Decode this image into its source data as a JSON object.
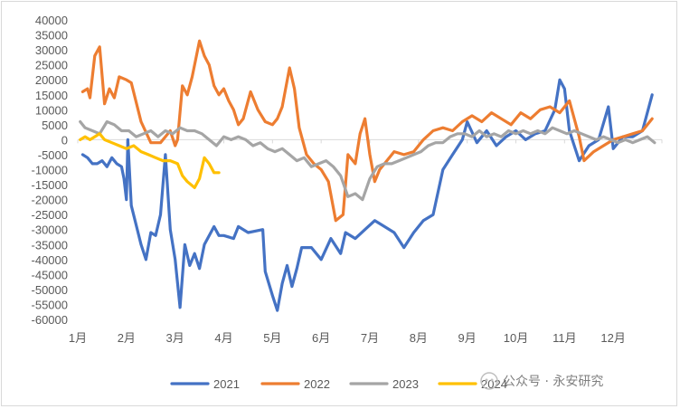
{
  "chart_data": {
    "type": "line",
    "title": "",
    "xlabel": "",
    "ylabel": "",
    "ylim": [
      -60000,
      40000
    ],
    "y_ticks": [
      40000,
      35000,
      30000,
      25000,
      20000,
      15000,
      10000,
      5000,
      0,
      -5000,
      -10000,
      -15000,
      -20000,
      -25000,
      -30000,
      -35000,
      -40000,
      -45000,
      -50000,
      -55000,
      -60000
    ],
    "y_tick_labels": [
      "40000",
      "35000",
      "30000",
      "25000",
      "20000",
      "15000",
      "10000",
      "5000",
      "0",
      "-5000",
      "-10000",
      "-15000",
      "-20000",
      "-25000",
      "-30000",
      "-35000",
      "-40000",
      "-45000",
      "-50000",
      "-55000",
      "-60000"
    ],
    "x_domain": [
      1,
      13
    ],
    "x_ticks": [
      1,
      2,
      3,
      4,
      5,
      6,
      7,
      8,
      9,
      10,
      11,
      12
    ],
    "x_tick_labels": [
      "1月",
      "2月",
      "3月",
      "4月",
      "5月",
      "6月",
      "7月",
      "8月",
      "9月",
      "10月",
      "11月",
      "12月"
    ],
    "grid": "y-zero-line only",
    "legend_position": "bottom",
    "series": [
      {
        "name": "2021",
        "color": "#4472c4",
        "points": [
          [
            1.1,
            -5000
          ],
          [
            1.2,
            -6000
          ],
          [
            1.3,
            -8000
          ],
          [
            1.4,
            -8000
          ],
          [
            1.5,
            -7000
          ],
          [
            1.6,
            -9000
          ],
          [
            1.7,
            -6000
          ],
          [
            1.8,
            -8000
          ],
          [
            1.9,
            -9000
          ],
          [
            1.95,
            -13000
          ],
          [
            2.0,
            -20000
          ],
          [
            2.03,
            0
          ],
          [
            2.1,
            -22000
          ],
          [
            2.3,
            -35000
          ],
          [
            2.4,
            -40000
          ],
          [
            2.5,
            -31000
          ],
          [
            2.6,
            -32000
          ],
          [
            2.7,
            -25000
          ],
          [
            2.8,
            -5000
          ],
          [
            2.9,
            -30000
          ],
          [
            3.0,
            -40000
          ],
          [
            3.1,
            -56000
          ],
          [
            3.2,
            -35000
          ],
          [
            3.3,
            -42000
          ],
          [
            3.4,
            -38000
          ],
          [
            3.5,
            -43000
          ],
          [
            3.6,
            -35000
          ],
          [
            3.8,
            -29000
          ],
          [
            3.9,
            -32000
          ],
          [
            4.0,
            -32000
          ],
          [
            4.2,
            -33000
          ],
          [
            4.3,
            -29000
          ],
          [
            4.5,
            -31000
          ],
          [
            4.8,
            -30000
          ],
          [
            4.85,
            -44000
          ],
          [
            5.0,
            -52000
          ],
          [
            5.1,
            -57000
          ],
          [
            5.2,
            -48000
          ],
          [
            5.3,
            -42000
          ],
          [
            5.4,
            -49000
          ],
          [
            5.5,
            -43000
          ],
          [
            5.6,
            -36000
          ],
          [
            5.8,
            -36000
          ],
          [
            6.0,
            -40000
          ],
          [
            6.2,
            -33000
          ],
          [
            6.4,
            -38000
          ],
          [
            6.5,
            -31000
          ],
          [
            6.7,
            -33000
          ],
          [
            6.9,
            -30000
          ],
          [
            7.1,
            -27000
          ],
          [
            7.3,
            -29000
          ],
          [
            7.5,
            -31000
          ],
          [
            7.7,
            -36000
          ],
          [
            7.9,
            -31000
          ],
          [
            8.1,
            -27000
          ],
          [
            8.3,
            -25000
          ],
          [
            8.5,
            -10000
          ],
          [
            8.7,
            -5000
          ],
          [
            8.9,
            0
          ],
          [
            9.0,
            6000
          ],
          [
            9.2,
            -1000
          ],
          [
            9.4,
            3000
          ],
          [
            9.6,
            -2000
          ],
          [
            9.8,
            1000
          ],
          [
            10.0,
            3000
          ],
          [
            10.2,
            0
          ],
          [
            10.4,
            2000
          ],
          [
            10.6,
            3000
          ],
          [
            10.8,
            10000
          ],
          [
            10.9,
            20000
          ],
          [
            11.0,
            17000
          ],
          [
            11.1,
            3000
          ],
          [
            11.3,
            -7000
          ],
          [
            11.5,
            -2000
          ],
          [
            11.7,
            0
          ],
          [
            11.9,
            11000
          ],
          [
            12.0,
            -3000
          ],
          [
            12.2,
            1000
          ],
          [
            12.4,
            1000
          ],
          [
            12.6,
            3000
          ],
          [
            12.8,
            15000
          ]
        ]
      },
      {
        "name": "2022",
        "color": "#ed7d31",
        "points": [
          [
            1.1,
            16000
          ],
          [
            1.2,
            17000
          ],
          [
            1.25,
            14000
          ],
          [
            1.35,
            28000
          ],
          [
            1.45,
            31000
          ],
          [
            1.55,
            12000
          ],
          [
            1.65,
            17000
          ],
          [
            1.75,
            14000
          ],
          [
            1.85,
            21000
          ],
          [
            2.0,
            20000
          ],
          [
            2.1,
            19000
          ],
          [
            2.3,
            6000
          ],
          [
            2.5,
            -1000
          ],
          [
            2.7,
            -1000
          ],
          [
            2.8,
            1000
          ],
          [
            2.9,
            3000
          ],
          [
            3.0,
            -2000
          ],
          [
            3.05,
            0
          ],
          [
            3.15,
            18000
          ],
          [
            3.25,
            15000
          ],
          [
            3.35,
            21000
          ],
          [
            3.5,
            33000
          ],
          [
            3.6,
            28000
          ],
          [
            3.7,
            25000
          ],
          [
            3.8,
            18000
          ],
          [
            3.9,
            15000
          ],
          [
            4.0,
            17000
          ],
          [
            4.1,
            13000
          ],
          [
            4.2,
            10000
          ],
          [
            4.3,
            5000
          ],
          [
            4.4,
            7000
          ],
          [
            4.55,
            16000
          ],
          [
            4.7,
            10000
          ],
          [
            4.85,
            6000
          ],
          [
            5.0,
            5000
          ],
          [
            5.1,
            7000
          ],
          [
            5.2,
            11000
          ],
          [
            5.35,
            24000
          ],
          [
            5.45,
            17000
          ],
          [
            5.55,
            4000
          ],
          [
            5.7,
            -5000
          ],
          [
            5.85,
            -8000
          ],
          [
            6.0,
            -10000
          ],
          [
            6.15,
            -14000
          ],
          [
            6.3,
            -27000
          ],
          [
            6.45,
            -25000
          ],
          [
            6.55,
            -5000
          ],
          [
            6.7,
            -8000
          ],
          [
            6.8,
            2000
          ],
          [
            6.9,
            7000
          ],
          [
            7.0,
            -5000
          ],
          [
            7.1,
            -14000
          ],
          [
            7.2,
            -10000
          ],
          [
            7.3,
            -8000
          ],
          [
            7.5,
            -4000
          ],
          [
            7.7,
            -5000
          ],
          [
            7.9,
            -4000
          ],
          [
            8.1,
            0
          ],
          [
            8.3,
            3000
          ],
          [
            8.5,
            4000
          ],
          [
            8.7,
            3000
          ],
          [
            8.9,
            6000
          ],
          [
            9.1,
            8000
          ],
          [
            9.3,
            6000
          ],
          [
            9.5,
            9000
          ],
          [
            9.7,
            7000
          ],
          [
            9.9,
            5000
          ],
          [
            10.1,
            9000
          ],
          [
            10.3,
            7000
          ],
          [
            10.5,
            10000
          ],
          [
            10.7,
            11000
          ],
          [
            10.9,
            9000
          ],
          [
            11.1,
            13000
          ],
          [
            11.3,
            1000
          ],
          [
            11.4,
            -7000
          ],
          [
            11.6,
            -4000
          ],
          [
            11.8,
            -2000
          ],
          [
            12.0,
            0
          ],
          [
            12.2,
            1000
          ],
          [
            12.4,
            2000
          ],
          [
            12.6,
            3000
          ],
          [
            12.8,
            7000
          ]
        ]
      },
      {
        "name": "2023",
        "color": "#a5a5a5",
        "points": [
          [
            1.05,
            6000
          ],
          [
            1.15,
            4000
          ],
          [
            1.3,
            3000
          ],
          [
            1.45,
            2000
          ],
          [
            1.6,
            6000
          ],
          [
            1.75,
            5000
          ],
          [
            1.9,
            3000
          ],
          [
            2.05,
            3000
          ],
          [
            2.2,
            1000
          ],
          [
            2.35,
            2000
          ],
          [
            2.5,
            3000
          ],
          [
            2.65,
            1000
          ],
          [
            2.8,
            3000
          ],
          [
            2.95,
            2000
          ],
          [
            3.1,
            4000
          ],
          [
            3.25,
            3000
          ],
          [
            3.4,
            3000
          ],
          [
            3.55,
            2000
          ],
          [
            3.7,
            0
          ],
          [
            3.85,
            -2000
          ],
          [
            4.0,
            1000
          ],
          [
            4.15,
            0
          ],
          [
            4.3,
            1000
          ],
          [
            4.45,
            0
          ],
          [
            4.6,
            -2000
          ],
          [
            4.75,
            -1000
          ],
          [
            4.9,
            -3000
          ],
          [
            5.05,
            -4000
          ],
          [
            5.2,
            -3000
          ],
          [
            5.35,
            -5000
          ],
          [
            5.5,
            -7000
          ],
          [
            5.65,
            -6000
          ],
          [
            5.8,
            -9000
          ],
          [
            5.95,
            -8000
          ],
          [
            6.1,
            -7000
          ],
          [
            6.25,
            -9000
          ],
          [
            6.4,
            -12000
          ],
          [
            6.55,
            -19000
          ],
          [
            6.7,
            -18000
          ],
          [
            6.85,
            -20000
          ],
          [
            7.0,
            -13000
          ],
          [
            7.15,
            -9000
          ],
          [
            7.3,
            -8000
          ],
          [
            7.45,
            -8000
          ],
          [
            7.6,
            -7000
          ],
          [
            7.75,
            -6000
          ],
          [
            7.9,
            -5000
          ],
          [
            8.05,
            -4000
          ],
          [
            8.2,
            -2000
          ],
          [
            8.35,
            -1000
          ],
          [
            8.5,
            -1000
          ],
          [
            8.65,
            1000
          ],
          [
            8.8,
            2000
          ],
          [
            8.95,
            2000
          ],
          [
            9.1,
            1000
          ],
          [
            9.25,
            3000
          ],
          [
            9.4,
            1000
          ],
          [
            9.55,
            2000
          ],
          [
            9.7,
            1000
          ],
          [
            9.85,
            3000
          ],
          [
            10.0,
            2000
          ],
          [
            10.15,
            3000
          ],
          [
            10.3,
            2000
          ],
          [
            10.45,
            3000
          ],
          [
            10.6,
            2000
          ],
          [
            10.75,
            4000
          ],
          [
            10.9,
            3000
          ],
          [
            11.05,
            2000
          ],
          [
            11.2,
            3000
          ],
          [
            11.35,
            2000
          ],
          [
            11.5,
            1000
          ],
          [
            11.65,
            0
          ],
          [
            11.8,
            1000
          ],
          [
            11.95,
            0
          ],
          [
            12.1,
            -1000
          ],
          [
            12.25,
            0
          ],
          [
            12.4,
            -1000
          ],
          [
            12.55,
            0
          ],
          [
            12.7,
            1000
          ],
          [
            12.85,
            -1000
          ]
        ]
      },
      {
        "name": "2024",
        "color": "#ffc000",
        "points": [
          [
            1.05,
            0
          ],
          [
            1.15,
            1000
          ],
          [
            1.25,
            0
          ],
          [
            1.35,
            1000
          ],
          [
            1.45,
            2000
          ],
          [
            1.55,
            0
          ],
          [
            1.7,
            -1000
          ],
          [
            1.85,
            -2000
          ],
          [
            2.0,
            -3000
          ],
          [
            2.15,
            -2000
          ],
          [
            2.3,
            -4000
          ],
          [
            2.45,
            -5000
          ],
          [
            2.6,
            -6000
          ],
          [
            2.75,
            -7000
          ],
          [
            2.9,
            -7000
          ],
          [
            3.05,
            -8000
          ],
          [
            3.15,
            -12000
          ],
          [
            3.25,
            -14000
          ],
          [
            3.4,
            -16000
          ],
          [
            3.5,
            -13000
          ],
          [
            3.6,
            -6000
          ],
          [
            3.7,
            -8000
          ],
          [
            3.8,
            -11000
          ],
          [
            3.9,
            -11000
          ]
        ]
      }
    ]
  },
  "watermark": "公众号 · 永安研究"
}
